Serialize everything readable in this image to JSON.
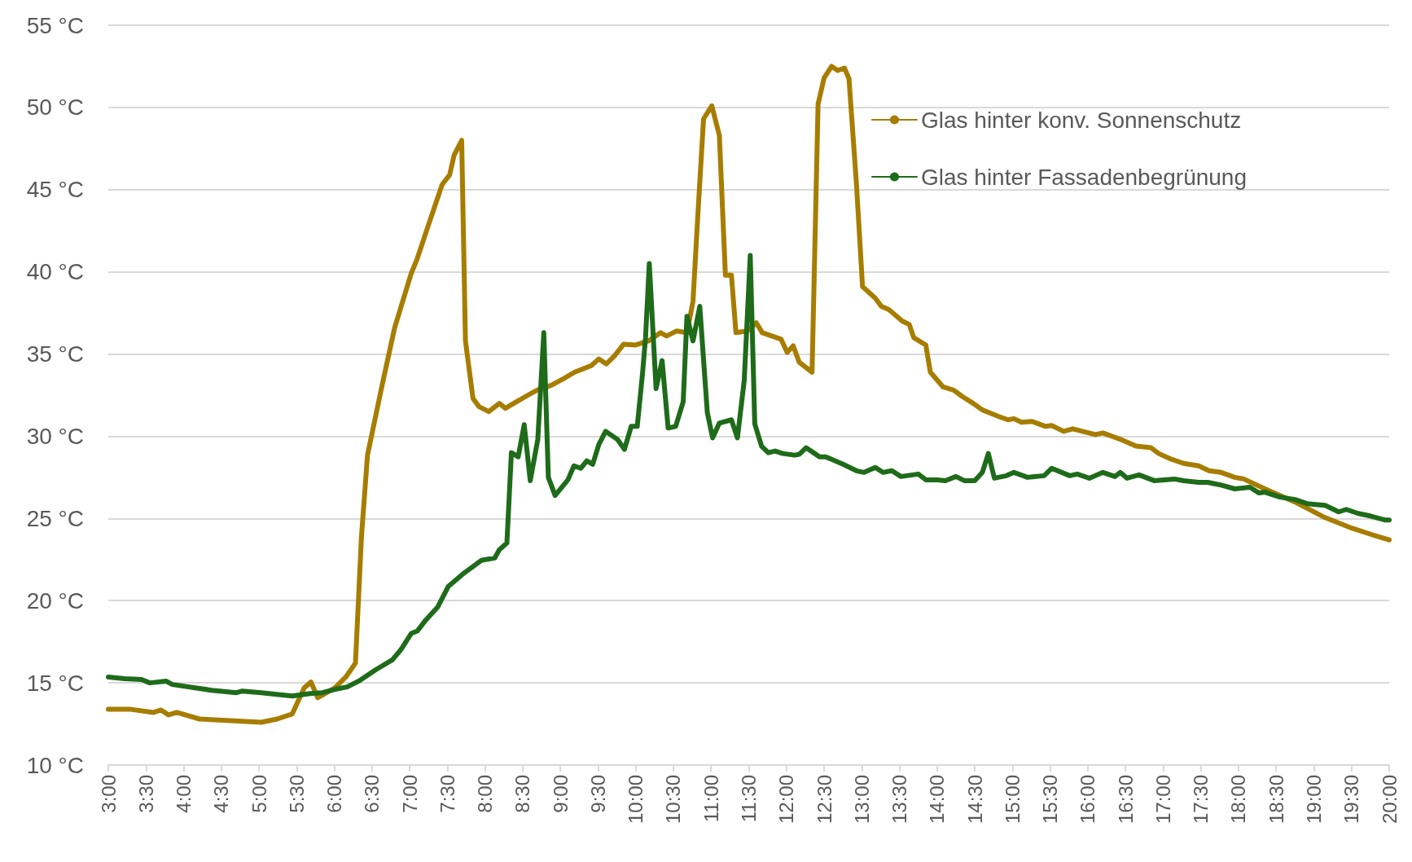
{
  "chart_data": {
    "type": "line",
    "xlim": [
      3,
      20
    ],
    "xticks": [
      {
        "value": 3,
        "label": "3:00"
      },
      {
        "value": 3.5,
        "label": "3:30"
      },
      {
        "value": 4,
        "label": "4:00"
      },
      {
        "value": 4.5,
        "label": "4:30"
      },
      {
        "value": 5,
        "label": "5:00"
      },
      {
        "value": 5.5,
        "label": "5:30"
      },
      {
        "value": 6,
        "label": "6:00"
      },
      {
        "value": 6.5,
        "label": "6:30"
      },
      {
        "value": 7,
        "label": "7:00"
      },
      {
        "value": 7.5,
        "label": "7:30"
      },
      {
        "value": 8,
        "label": "8:00"
      },
      {
        "value": 8.5,
        "label": "8:30"
      },
      {
        "value": 9,
        "label": "9:00"
      },
      {
        "value": 9.5,
        "label": "9:30"
      },
      {
        "value": 10,
        "label": "10:00"
      },
      {
        "value": 10.5,
        "label": "10:30"
      },
      {
        "value": 11,
        "label": "11:00"
      },
      {
        "value": 11.5,
        "label": "11:30"
      },
      {
        "value": 12,
        "label": "12:00"
      },
      {
        "value": 12.5,
        "label": "12:30"
      },
      {
        "value": 13,
        "label": "13:00"
      },
      {
        "value": 13.5,
        "label": "13:30"
      },
      {
        "value": 14,
        "label": "14:00"
      },
      {
        "value": 14.5,
        "label": "14:30"
      },
      {
        "value": 15,
        "label": "15:00"
      },
      {
        "value": 15.5,
        "label": "15:30"
      },
      {
        "value": 16,
        "label": "16:00"
      },
      {
        "value": 16.5,
        "label": "16:30"
      },
      {
        "value": 17,
        "label": "17:00"
      },
      {
        "value": 17.5,
        "label": "17:30"
      },
      {
        "value": 18,
        "label": "18:00"
      },
      {
        "value": 18.5,
        "label": "18:30"
      },
      {
        "value": 19,
        "label": "19:00"
      },
      {
        "value": 19.5,
        "label": "19:30"
      },
      {
        "value": 20,
        "label": "20:00"
      }
    ],
    "ylim": [
      10,
      55
    ],
    "yticks": [
      {
        "value": 10,
        "label": "10 °C"
      },
      {
        "value": 15,
        "label": "15 °C"
      },
      {
        "value": 20,
        "label": "20 °C"
      },
      {
        "value": 25,
        "label": "25 °C"
      },
      {
        "value": 30,
        "label": "30 °C"
      },
      {
        "value": 35,
        "label": "35 °C"
      },
      {
        "value": 40,
        "label": "40 °C"
      },
      {
        "value": 45,
        "label": "45 °C"
      },
      {
        "value": 50,
        "label": "50 °C"
      },
      {
        "value": 55,
        "label": "55 °C"
      }
    ],
    "grid": "y",
    "legend": "top right",
    "marker": "none",
    "line_style": "solid",
    "series": [
      {
        "name": "Glas hinter konv. Sonnenschutz",
        "color": "#a67d00",
        "x": [
          3.0,
          3.28,
          3.6,
          3.7,
          3.8,
          3.91,
          4.21,
          4.62,
          5.03,
          5.24,
          5.44,
          5.6,
          5.69,
          5.78,
          6.01,
          6.16,
          6.28,
          6.36,
          6.44,
          6.62,
          6.8,
          7.02,
          7.1,
          7.26,
          7.43,
          7.53,
          7.59,
          7.69,
          7.74,
          7.84,
          7.92,
          8.05,
          8.19,
          8.27,
          8.38,
          8.57,
          8.69,
          8.88,
          9.04,
          9.19,
          9.41,
          9.51,
          9.61,
          9.72,
          9.84,
          10.0,
          10.17,
          10.33,
          10.41,
          10.54,
          10.68,
          10.76,
          10.82,
          10.9,
          11.01,
          11.11,
          11.19,
          11.27,
          11.33,
          11.48,
          11.6,
          11.68,
          11.93,
          12.01,
          12.09,
          12.17,
          12.34,
          12.42,
          12.5,
          12.6,
          12.68,
          12.77,
          12.83,
          12.93,
          13.01,
          13.18,
          13.26,
          13.36,
          13.54,
          13.63,
          13.69,
          13.85,
          13.91,
          14.08,
          14.22,
          14.34,
          14.48,
          14.6,
          14.82,
          14.94,
          15.02,
          15.12,
          15.26,
          15.44,
          15.52,
          15.68,
          15.8,
          16.1,
          16.2,
          16.44,
          16.64,
          16.84,
          16.94,
          17.11,
          17.27,
          17.47,
          17.61,
          17.77,
          17.95,
          18.07,
          18.35,
          18.75,
          19.15,
          19.51,
          19.78,
          20.0
        ],
        "values": [
          13.4,
          13.4,
          13.2,
          13.35,
          13.05,
          13.2,
          12.8,
          12.7,
          12.6,
          12.8,
          13.1,
          14.7,
          15.05,
          14.1,
          14.7,
          15.4,
          16.2,
          23.9,
          28.85,
          32.8,
          36.6,
          39.9,
          40.8,
          43.0,
          45.3,
          45.9,
          47.1,
          48.0,
          35.8,
          32.3,
          31.8,
          31.5,
          32.0,
          31.7,
          32.0,
          32.5,
          32.8,
          33.1,
          33.5,
          33.9,
          34.3,
          34.7,
          34.4,
          34.9,
          35.6,
          35.55,
          35.8,
          36.3,
          36.1,
          36.4,
          36.3,
          38.2,
          43.1,
          49.3,
          50.1,
          48.3,
          39.8,
          39.8,
          36.3,
          36.4,
          36.9,
          36.3,
          35.9,
          35.1,
          35.5,
          34.5,
          33.9,
          50.2,
          51.8,
          52.5,
          52.25,
          52.4,
          51.75,
          45.3,
          39.1,
          38.4,
          37.9,
          37.7,
          37.0,
          36.8,
          36.0,
          35.55,
          33.9,
          33.0,
          32.8,
          32.4,
          32.0,
          31.6,
          31.2,
          31.0,
          31.07,
          30.85,
          30.9,
          30.6,
          30.65,
          30.3,
          30.45,
          30.1,
          30.2,
          29.8,
          29.4,
          29.3,
          28.95,
          28.6,
          28.35,
          28.2,
          27.9,
          27.8,
          27.5,
          27.4,
          26.8,
          26.0,
          25.05,
          24.4,
          24.0,
          23.7
        ]
      },
      {
        "name": "Glas hinter Fassadenbegrünung",
        "color": "#1e6b1a",
        "x": [
          3.0,
          3.22,
          3.44,
          3.55,
          3.77,
          3.85,
          4.37,
          4.7,
          4.78,
          5.03,
          5.44,
          5.68,
          5.84,
          6.01,
          6.17,
          6.34,
          6.55,
          6.77,
          6.88,
          7.02,
          7.1,
          7.21,
          7.37,
          7.51,
          7.7,
          7.95,
          8.13,
          8.19,
          8.29,
          8.35,
          8.44,
          8.52,
          8.6,
          8.7,
          8.78,
          8.84,
          8.93,
          9.1,
          9.18,
          9.27,
          9.35,
          9.43,
          9.51,
          9.6,
          9.76,
          9.85,
          9.94,
          10.02,
          10.09,
          10.13,
          10.18,
          10.27,
          10.35,
          10.43,
          10.53,
          10.63,
          10.68,
          10.76,
          10.85,
          10.95,
          11.02,
          11.11,
          11.27,
          11.35,
          11.44,
          11.52,
          11.58,
          11.67,
          11.76,
          11.85,
          11.95,
          12.11,
          12.17,
          12.26,
          12.36,
          12.44,
          12.52,
          12.75,
          12.93,
          13.03,
          13.18,
          13.28,
          13.4,
          13.52,
          13.75,
          13.85,
          14.0,
          14.11,
          14.25,
          14.36,
          14.5,
          14.6,
          14.68,
          14.76,
          14.92,
          15.02,
          15.2,
          15.42,
          15.52,
          15.76,
          15.86,
          16.02,
          16.2,
          16.36,
          16.43,
          16.52,
          16.68,
          16.88,
          17.15,
          17.27,
          17.47,
          17.59,
          17.75,
          17.95,
          18.15,
          18.27,
          18.35,
          18.55,
          18.75,
          18.91,
          19.15,
          19.33,
          19.43,
          19.59,
          19.75,
          19.95,
          20.0
        ],
        "values": [
          15.35,
          15.25,
          15.2,
          15.0,
          15.1,
          14.9,
          14.55,
          14.4,
          14.5,
          14.4,
          14.2,
          14.35,
          14.4,
          14.6,
          14.75,
          15.15,
          15.8,
          16.4,
          17.0,
          18.0,
          18.15,
          18.8,
          19.6,
          20.85,
          21.6,
          22.45,
          22.6,
          23.1,
          23.5,
          29.0,
          28.75,
          30.7,
          27.3,
          29.8,
          36.3,
          27.5,
          26.4,
          27.35,
          28.2,
          28.05,
          28.5,
          28.3,
          29.5,
          30.3,
          29.8,
          29.2,
          30.6,
          30.6,
          33.8,
          36.0,
          40.5,
          32.9,
          34.6,
          30.5,
          30.6,
          32.1,
          37.3,
          35.8,
          37.9,
          31.45,
          29.9,
          30.8,
          31.0,
          29.9,
          33.4,
          41.0,
          30.75,
          29.4,
          29.0,
          29.1,
          28.95,
          28.85,
          28.9,
          29.3,
          29.0,
          28.75,
          28.75,
          28.3,
          27.9,
          27.8,
          28.1,
          27.8,
          27.9,
          27.55,
          27.7,
          27.35,
          27.35,
          27.3,
          27.55,
          27.3,
          27.3,
          27.8,
          28.95,
          27.45,
          27.6,
          27.8,
          27.5,
          27.6,
          28.05,
          27.6,
          27.7,
          27.45,
          27.8,
          27.55,
          27.8,
          27.45,
          27.65,
          27.3,
          27.4,
          27.3,
          27.2,
          27.2,
          27.05,
          26.8,
          26.9,
          26.55,
          26.6,
          26.3,
          26.15,
          25.9,
          25.8,
          25.4,
          25.55,
          25.3,
          25.15,
          24.9,
          24.9
        ]
      }
    ]
  }
}
